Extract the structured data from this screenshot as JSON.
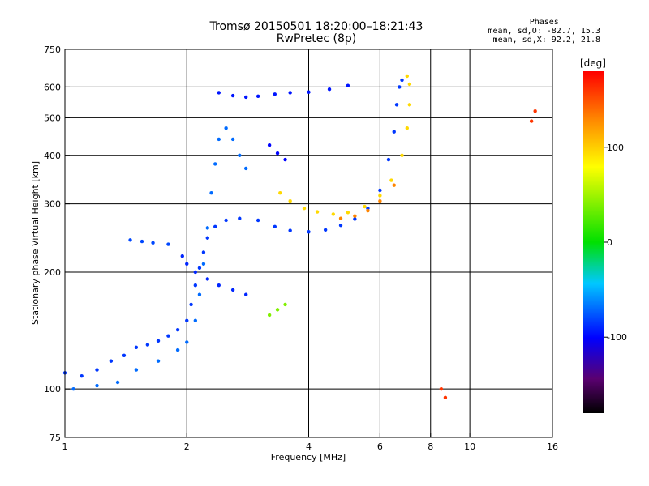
{
  "chart_data": {
    "type": "scatter",
    "title": "Tromsø 20150501 18:20:00–18:21:43",
    "subtitle": "RwPretec (8p)",
    "xlabel": "Frequency [MHz]",
    "ylabel": "Stationary phase Virtual Height [km]",
    "x_scale": "log",
    "y_scale": "log",
    "xlim": [
      1,
      16
    ],
    "ylim": [
      75,
      750
    ],
    "x_ticks": [
      1,
      2,
      4,
      6,
      8,
      10,
      16
    ],
    "y_ticks": [
      75,
      100,
      200,
      300,
      400,
      500,
      600,
      750
    ],
    "grid": true,
    "stats": {
      "heading": "Phases",
      "line_o": "mean, sd,O: -82.7, 15.3",
      "line_x": "mean, sd,X:  92.2, 21.8"
    },
    "colorbar": {
      "label": "[deg]",
      "range": [
        -180,
        180
      ],
      "ticks": [
        -100,
        0,
        100
      ]
    },
    "series": [
      {
        "phase_deg": -85,
        "points": [
          [
            1.0,
            110
          ],
          [
            1.1,
            108
          ],
          [
            1.2,
            112
          ],
          [
            1.3,
            118
          ],
          [
            1.4,
            122
          ],
          [
            1.5,
            128
          ],
          [
            1.6,
            130
          ],
          [
            1.7,
            133
          ],
          [
            1.8,
            137
          ],
          [
            1.9,
            142
          ],
          [
            2.0,
            150
          ],
          [
            2.05,
            165
          ],
          [
            2.1,
            185
          ],
          [
            2.15,
            205
          ],
          [
            2.2,
            225
          ],
          [
            2.25,
            245
          ],
          [
            2.35,
            262
          ],
          [
            2.5,
            272
          ],
          [
            2.7,
            275
          ],
          [
            3.0,
            272
          ],
          [
            3.3,
            262
          ],
          [
            3.6,
            256
          ],
          [
            4.0,
            254
          ],
          [
            4.4,
            257
          ],
          [
            4.8,
            264
          ],
          [
            5.2,
            274
          ],
          [
            5.6,
            292
          ],
          [
            6.0,
            325
          ],
          [
            6.3,
            390
          ],
          [
            6.5,
            460
          ],
          [
            6.6,
            540
          ],
          [
            6.7,
            600
          ],
          [
            6.8,
            625
          ]
        ]
      },
      {
        "phase_deg": -70,
        "points": [
          [
            1.05,
            100
          ],
          [
            1.2,
            102
          ],
          [
            1.35,
            104
          ],
          [
            1.5,
            112
          ],
          [
            1.7,
            118
          ],
          [
            1.9,
            126
          ],
          [
            2.0,
            132
          ],
          [
            2.1,
            150
          ],
          [
            2.15,
            175
          ],
          [
            2.2,
            210
          ],
          [
            2.25,
            260
          ],
          [
            2.3,
            320
          ],
          [
            2.35,
            380
          ],
          [
            2.4,
            440
          ],
          [
            2.5,
            470
          ],
          [
            2.6,
            440
          ],
          [
            2.7,
            400
          ],
          [
            2.8,
            370
          ]
        ]
      },
      {
        "phase_deg": -95,
        "points": [
          [
            2.4,
            580
          ],
          [
            2.6,
            570
          ],
          [
            2.8,
            565
          ],
          [
            3.0,
            568
          ],
          [
            3.3,
            575
          ],
          [
            3.6,
            580
          ],
          [
            4.0,
            582
          ],
          [
            4.5,
            592
          ],
          [
            5.0,
            605
          ]
        ]
      },
      {
        "phase_deg": -90,
        "points": [
          [
            2.8,
            175
          ],
          [
            2.6,
            180
          ],
          [
            2.4,
            185
          ],
          [
            2.25,
            192
          ],
          [
            2.1,
            200
          ],
          [
            2.0,
            210
          ],
          [
            1.95,
            220
          ]
        ]
      },
      {
        "phase_deg": -80,
        "points": [
          [
            1.45,
            242
          ],
          [
            1.55,
            240
          ],
          [
            1.65,
            238
          ],
          [
            1.8,
            236
          ]
        ]
      },
      {
        "phase_deg": -100,
        "points": [
          [
            3.2,
            425
          ],
          [
            3.35,
            405
          ],
          [
            3.5,
            390
          ]
        ]
      },
      {
        "phase_deg": 95,
        "points": [
          [
            3.4,
            320
          ],
          [
            3.6,
            305
          ],
          [
            3.9,
            292
          ],
          [
            4.2,
            286
          ],
          [
            4.6,
            282
          ],
          [
            5.0,
            285
          ],
          [
            5.5,
            295
          ],
          [
            6.0,
            315
          ],
          [
            6.4,
            345
          ],
          [
            6.8,
            400
          ],
          [
            7.0,
            470
          ],
          [
            7.1,
            540
          ],
          [
            7.1,
            610
          ],
          [
            7.0,
            640
          ]
        ]
      },
      {
        "phase_deg": 130,
        "points": [
          [
            4.8,
            275
          ],
          [
            5.2,
            279
          ],
          [
            5.6,
            288
          ],
          [
            6.0,
            305
          ],
          [
            6.5,
            335
          ]
        ]
      },
      {
        "phase_deg": 40,
        "points": [
          [
            3.2,
            155
          ],
          [
            3.35,
            160
          ],
          [
            3.5,
            165
          ]
        ]
      },
      {
        "phase_deg": 160,
        "points": [
          [
            8.5,
            100
          ],
          [
            8.7,
            95
          ],
          [
            14.2,
            490
          ],
          [
            14.5,
            520
          ]
        ]
      }
    ]
  }
}
